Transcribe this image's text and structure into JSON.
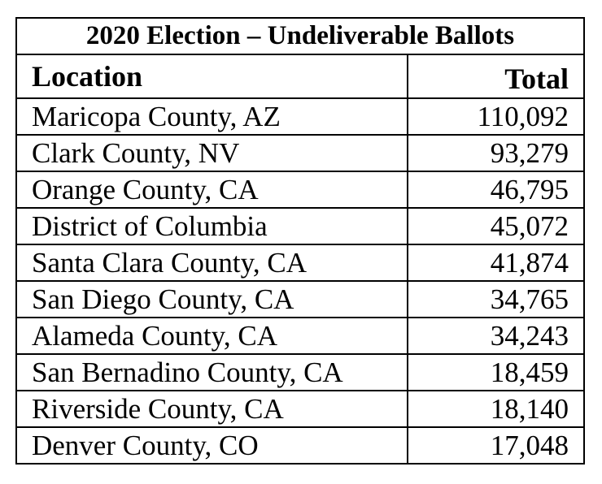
{
  "table": {
    "title": "2020 Election – Undeliverable Ballots",
    "headers": [
      "Location",
      "Total"
    ],
    "rows": [
      {
        "location": "Maricopa County, AZ",
        "total": "110,092"
      },
      {
        "location": "Clark County, NV",
        "total": "93,279"
      },
      {
        "location": "Orange County, CA",
        "total": "46,795"
      },
      {
        "location": "District of Columbia",
        "total": "45,072"
      },
      {
        "location": "Santa Clara County, CA",
        "total": "41,874"
      },
      {
        "location": "San Diego County, CA",
        "total": "34,765"
      },
      {
        "location": "Alameda County, CA",
        "total": "34,243"
      },
      {
        "location": "San Bernadino County, CA",
        "total": "18,459"
      },
      {
        "location": "Riverside County, CA",
        "total": "18,140"
      },
      {
        "location": "Denver County, CO",
        "total": "17,048"
      }
    ]
  }
}
